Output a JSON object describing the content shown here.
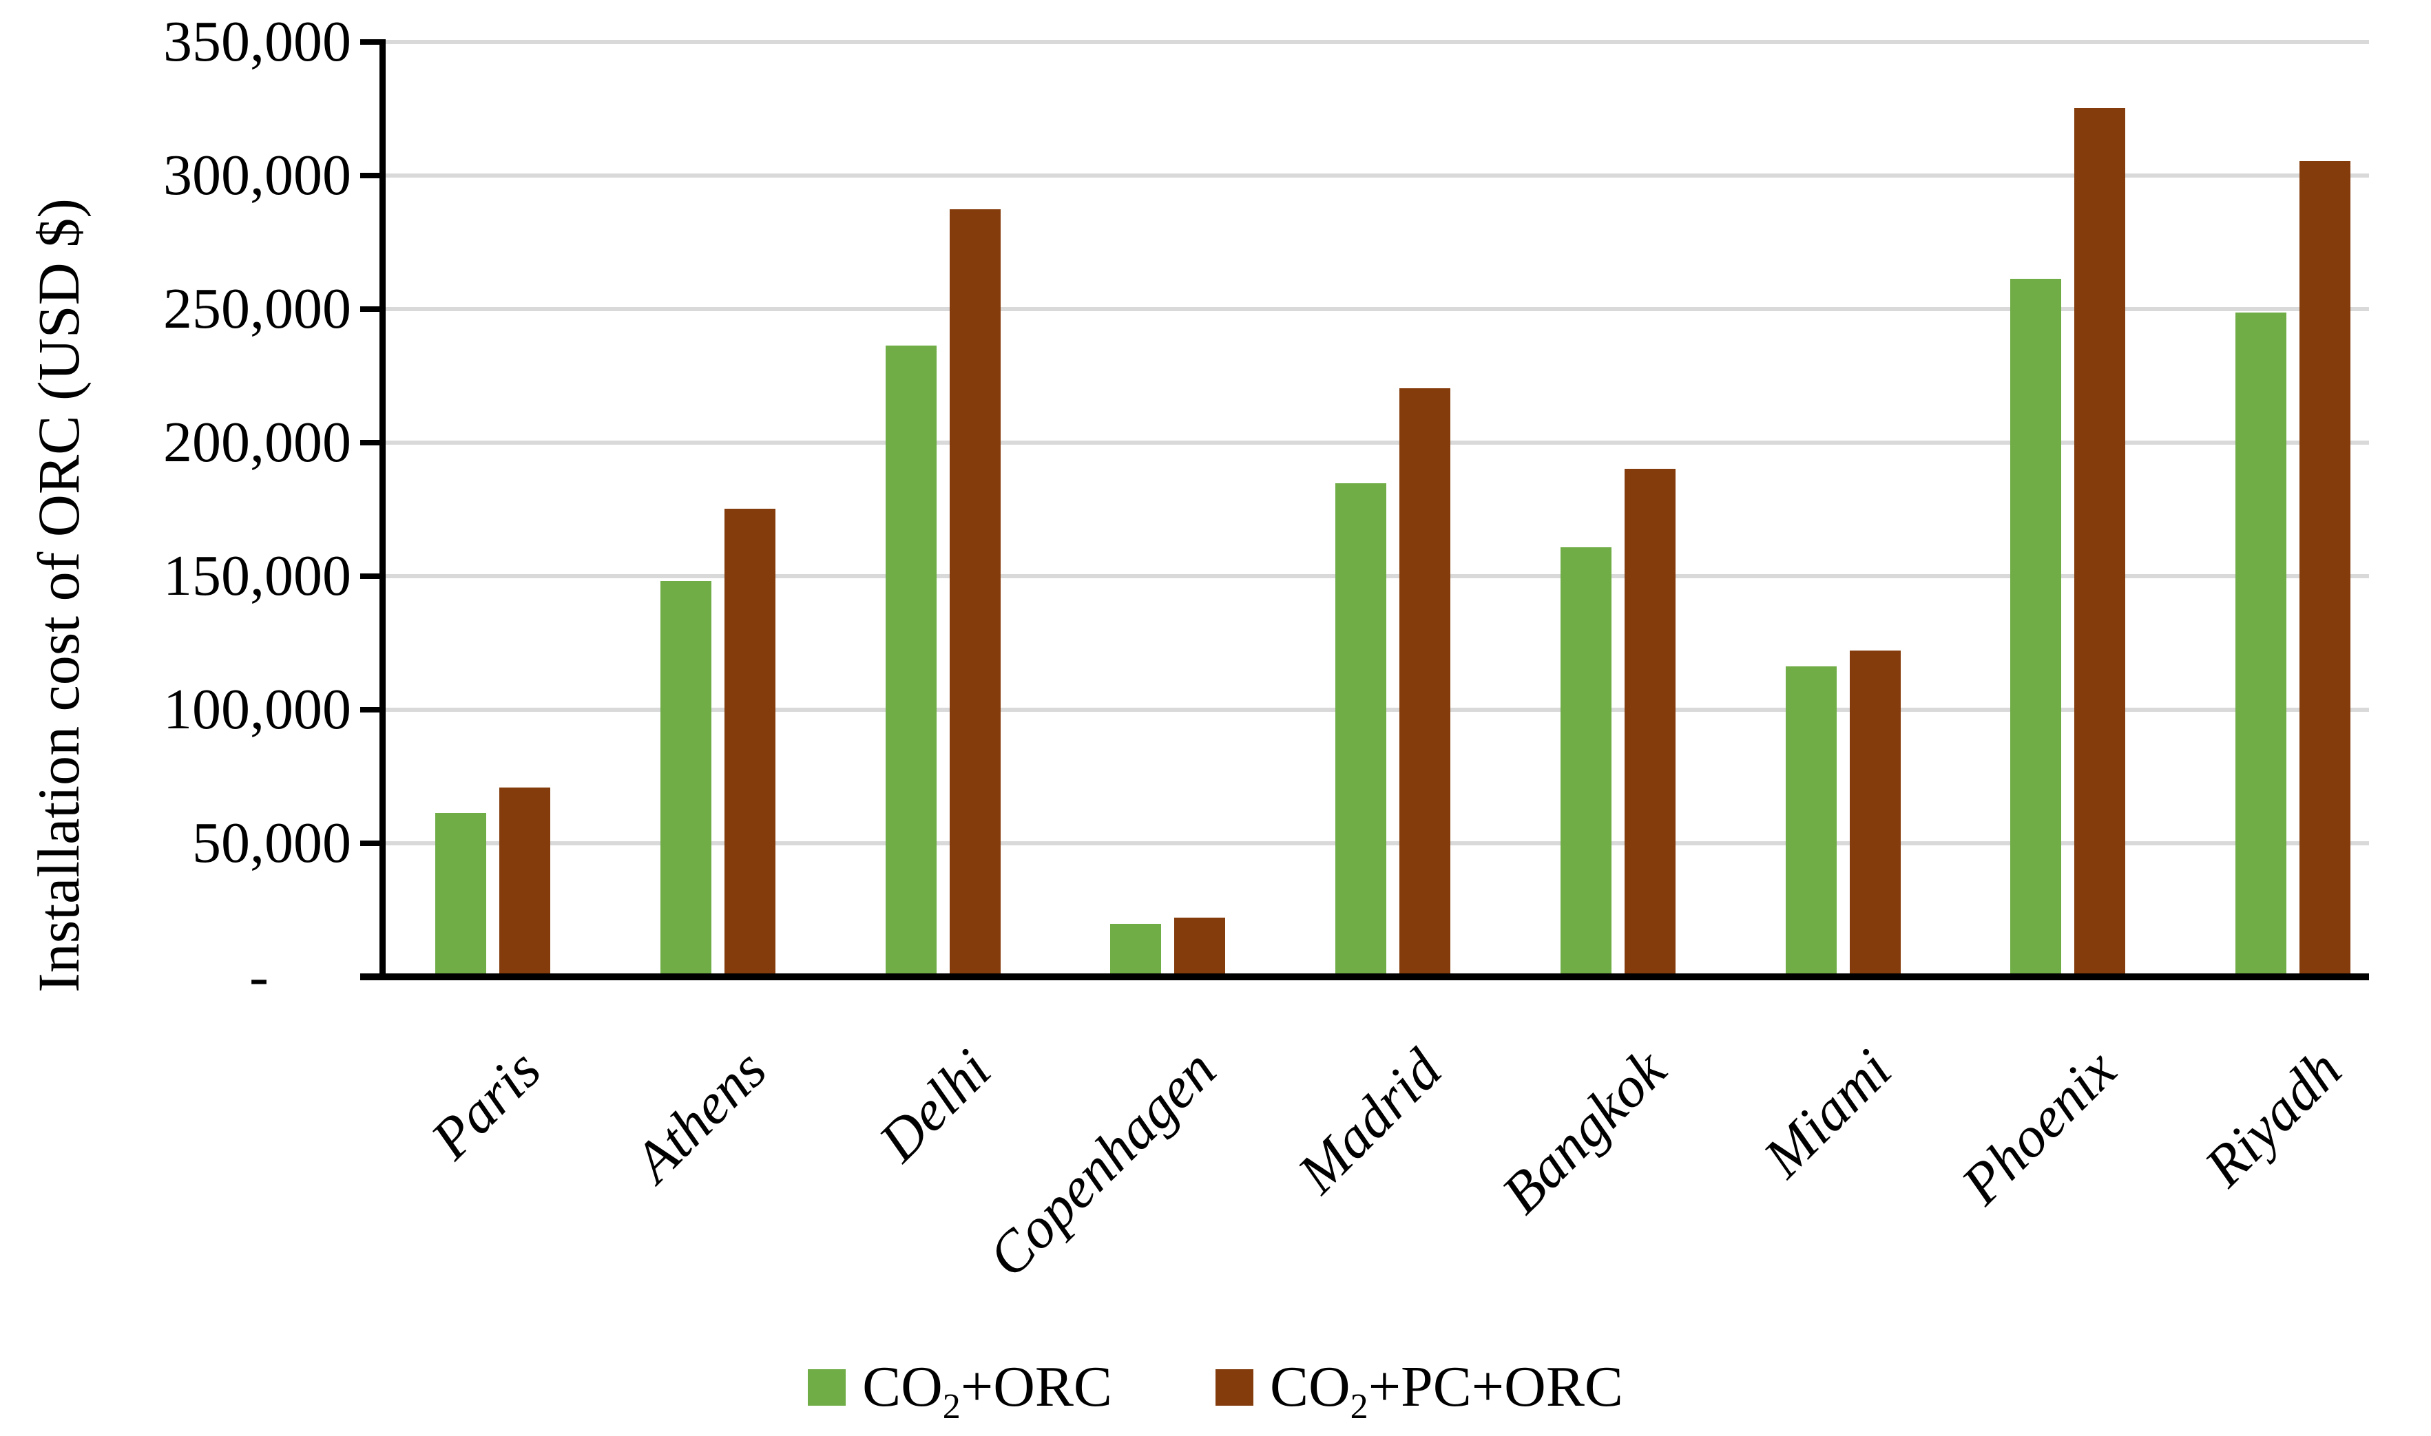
{
  "chart_data": {
    "type": "bar",
    "title": "",
    "xlabel": "",
    "ylabel": "Installation cost of ORC (USD $)",
    "ylim": [
      0,
      350000
    ],
    "grid": "horizontal",
    "legend_position": "bottom-center",
    "categories": [
      "Paris",
      "Athens",
      "Delhi",
      "Copenhagen",
      "Madrid",
      "Bangkok",
      "Miami",
      "Phoenix",
      "Riyadh"
    ],
    "series": [
      {
        "name": "CO2+ORC",
        "color": "#70AD47",
        "values": [
          60000,
          147000,
          235000,
          18500,
          183500,
          159500,
          115000,
          260000,
          247500
        ]
      },
      {
        "name": "CO2+PC+ORC",
        "color": "#843C0C",
        "values": [
          69500,
          174000,
          286000,
          21000,
          219000,
          189000,
          121000,
          324000,
          304000
        ]
      }
    ],
    "y_ticks": [
      {
        "label": "350,000",
        "value": 350000
      },
      {
        "label": "300,000",
        "value": 300000
      },
      {
        "label": "250,000",
        "value": 250000
      },
      {
        "label": "200,000",
        "value": 200000
      },
      {
        "label": "150,000",
        "value": 150000
      },
      {
        "label": "100,000",
        "value": 100000
      },
      {
        "label": "50,000",
        "value": 50000
      },
      {
        "label": "-",
        "value": 0
      }
    ],
    "legend": [
      {
        "pre": "CO",
        "sub": "2",
        "post": "+ORC",
        "color": "#70AD47",
        "series": "CO2+ORC"
      },
      {
        "pre": "CO",
        "sub": "2",
        "post": "+PC+ORC",
        "color": "#843C0C",
        "series": "CO2+PC+ORC"
      }
    ]
  }
}
